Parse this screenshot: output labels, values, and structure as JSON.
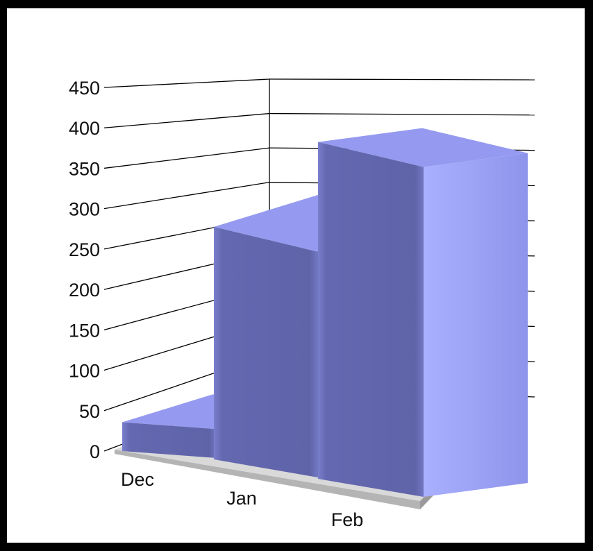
{
  "chart_data": {
    "type": "bar",
    "categories": [
      "Dec",
      "Jan",
      "Feb"
    ],
    "values": [
      30,
      290,
      420
    ],
    "ylim": [
      0,
      450
    ],
    "yticks": [
      0,
      50,
      100,
      150,
      200,
      250,
      300,
      350,
      400,
      450
    ],
    "grid": true,
    "legend": "none",
    "style": "3d",
    "colors": {
      "bar_front": "#6b6fb8",
      "bar_side": "#9ea4f2",
      "bar_top": "#959af0",
      "floor": "#b4b4b4",
      "grid": "#000000"
    }
  }
}
